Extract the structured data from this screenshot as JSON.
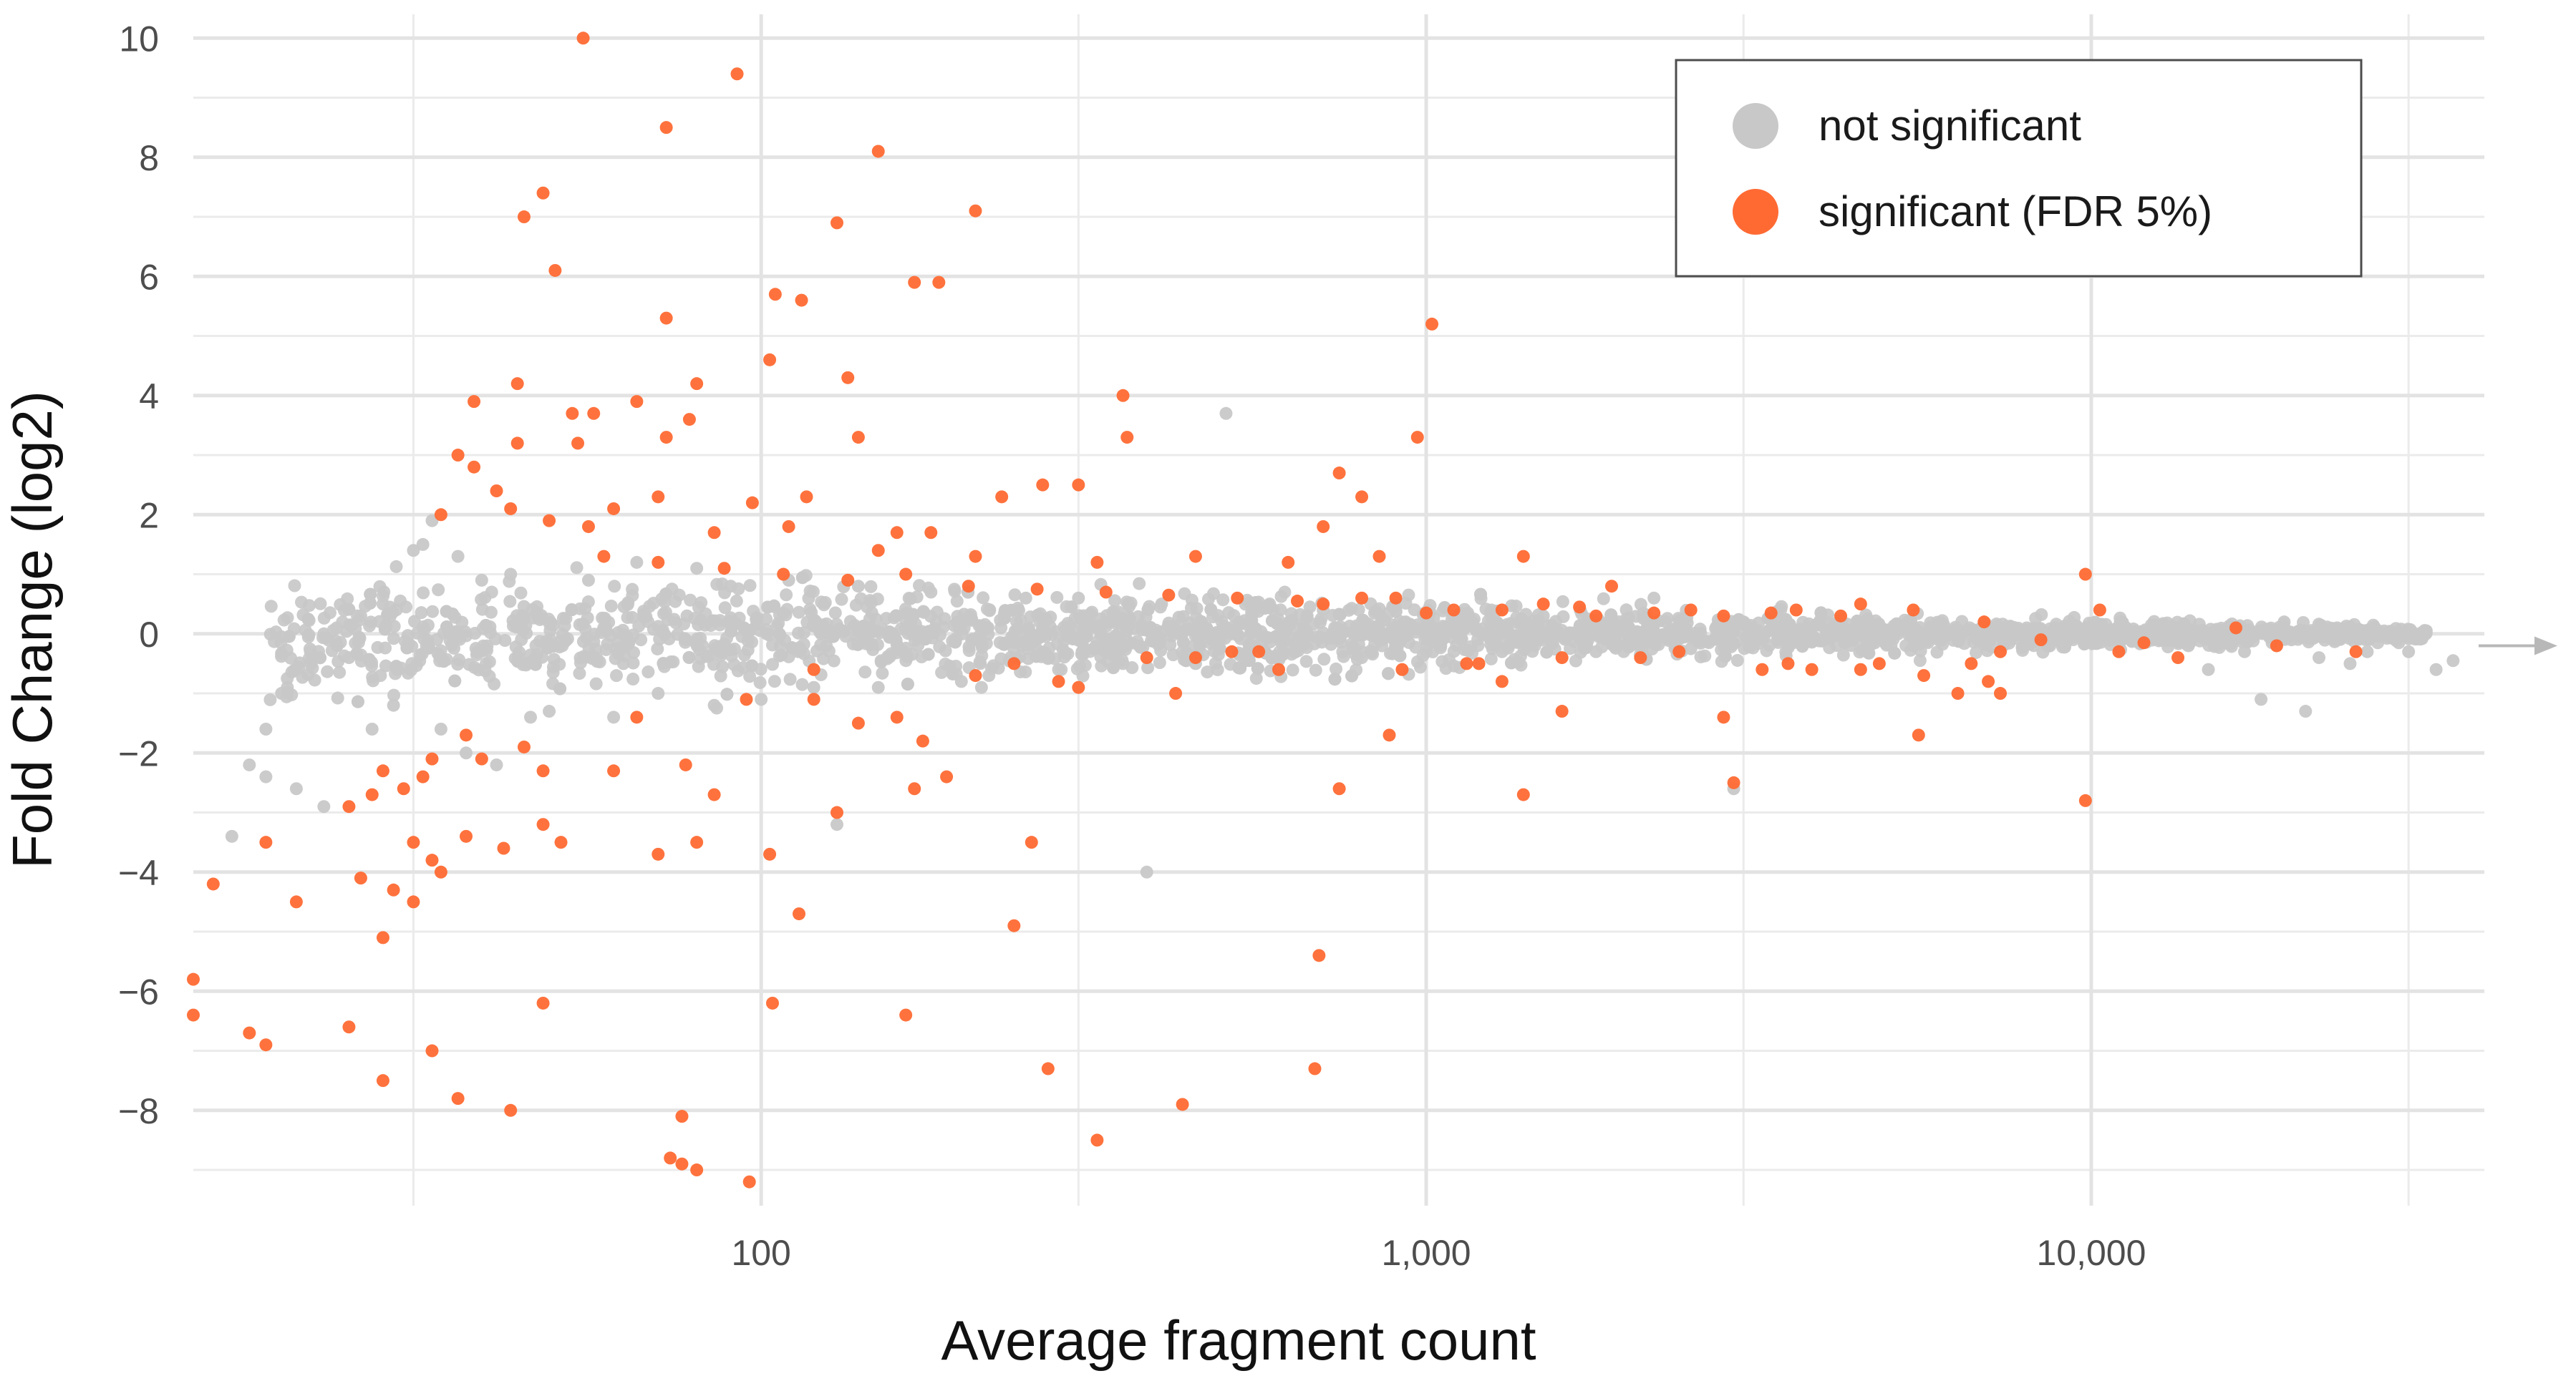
{
  "chart_data": {
    "type": "scatter",
    "title": "",
    "xlabel": "Average fragment count",
    "ylabel": "Fold Change (log2)",
    "x_scale": "log10",
    "xlim": [
      14,
      39000
    ],
    "ylim": [
      -9.6,
      10.4
    ],
    "x_ticks": [
      100,
      1000,
      10000
    ],
    "x_tick_labels": [
      "100",
      "1,000",
      "10,000"
    ],
    "y_ticks": [
      -8,
      -6,
      -4,
      -2,
      0,
      2,
      4,
      6,
      8,
      10
    ],
    "y_tick_labels": [
      "−8",
      "−6",
      "−4",
      "−2",
      "0",
      "2",
      "4",
      "6",
      "8",
      "10"
    ],
    "grid": true,
    "legend_position": "top-right",
    "colors": {
      "not_significant": "#c8c8c8",
      "significant": "#ff6a33"
    },
    "series": [
      {
        "name": "not significant",
        "color": "#c8c8c8",
        "points": [
          [
            17,
            -2.2
          ],
          [
            18,
            -1.6
          ],
          [
            19,
            -1.0
          ],
          [
            20,
            -0.6
          ],
          [
            21,
            -0.3
          ],
          [
            22,
            0.0
          ],
          [
            23,
            0.1
          ],
          [
            24,
            -0.4
          ],
          [
            25,
            0.3
          ],
          [
            16,
            -3.4
          ],
          [
            20,
            -2.6
          ],
          [
            22,
            -2.9
          ],
          [
            18,
            -2.4
          ],
          [
            26,
            -1.6
          ],
          [
            27,
            0.5
          ],
          [
            28,
            -1.2
          ],
          [
            30,
            1.4
          ],
          [
            31,
            1.5
          ],
          [
            32,
            1.9
          ],
          [
            33,
            -1.6
          ],
          [
            35,
            1.3
          ],
          [
            36,
            -2.0
          ],
          [
            38,
            0.9
          ],
          [
            40,
            -2.2
          ],
          [
            42,
            1.0
          ],
          [
            45,
            -1.4
          ],
          [
            48,
            -1.3
          ],
          [
            55,
            0.9
          ],
          [
            60,
            -1.4
          ],
          [
            65,
            1.2
          ],
          [
            70,
            -1.0
          ],
          [
            80,
            1.1
          ],
          [
            85,
            -1.2
          ],
          [
            90,
            0.8
          ],
          [
            100,
            -1.1
          ],
          [
            110,
            0.9
          ],
          [
            120,
            -0.9
          ],
          [
            130,
            -3.2
          ],
          [
            140,
            0.8
          ],
          [
            150,
            -0.9
          ],
          [
            180,
            0.7
          ],
          [
            200,
            -0.8
          ],
          [
            220,
            -0.7
          ],
          [
            250,
            0.6
          ],
          [
            280,
            -0.6
          ],
          [
            300,
            0.6
          ],
          [
            350,
            -0.5
          ],
          [
            380,
            -4.0
          ],
          [
            400,
            0.5
          ],
          [
            450,
            -0.5
          ],
          [
            500,
            3.7
          ],
          [
            550,
            0.5
          ],
          [
            600,
            -0.4
          ],
          [
            700,
            0.4
          ],
          [
            800,
            -0.4
          ],
          [
            900,
            0.4
          ],
          [
            1000,
            -0.3
          ],
          [
            1100,
            0.3
          ],
          [
            1300,
            -0.3
          ],
          [
            1500,
            0.3
          ],
          [
            1800,
            -0.3
          ],
          [
            2000,
            0.25
          ],
          [
            2200,
            0.6
          ],
          [
            2500,
            -0.25
          ],
          [
            2900,
            -2.6
          ],
          [
            3000,
            0.2
          ],
          [
            3500,
            -0.2
          ],
          [
            4000,
            0.2
          ],
          [
            5000,
            -0.2
          ],
          [
            6000,
            0.15
          ],
          [
            7000,
            -0.15
          ],
          [
            8000,
            0.1
          ],
          [
            9000,
            -0.15
          ],
          [
            10000,
            0.1
          ],
          [
            11000,
            -0.1
          ],
          [
            13000,
            0.05
          ],
          [
            14000,
            -0.2
          ],
          [
            15000,
            -0.6
          ],
          [
            16000,
            0.0
          ],
          [
            17000,
            -0.3
          ],
          [
            18000,
            -1.1
          ],
          [
            19000,
            -0.2
          ],
          [
            20000,
            -0.1
          ],
          [
            21000,
            -1.3
          ],
          [
            22000,
            -0.4
          ],
          [
            24000,
            0.0
          ],
          [
            26000,
            -0.3
          ],
          [
            28000,
            0.0
          ],
          [
            30000,
            -0.3
          ],
          [
            33000,
            -0.6
          ],
          [
            35000,
            -0.45
          ],
          [
            24500,
            -0.5
          ],
          [
            19500,
            0.2
          ],
          [
            29000,
            -0.15
          ]
        ]
      },
      {
        "name": "significant (FDR 5%)",
        "color": "#ff6a33",
        "points": [
          [
            54,
            10.0
          ],
          [
            92,
            9.4
          ],
          [
            72,
            8.5
          ],
          [
            150,
            8.1
          ],
          [
            47,
            7.4
          ],
          [
            44,
            7.0
          ],
          [
            210,
            7.1
          ],
          [
            130,
            6.9
          ],
          [
            49,
            6.1
          ],
          [
            170,
            5.9
          ],
          [
            185,
            5.9
          ],
          [
            105,
            5.7
          ],
          [
            115,
            5.6
          ],
          [
            72,
            5.3
          ],
          [
            1020,
            5.2
          ],
          [
            103,
            4.6
          ],
          [
            43,
            4.2
          ],
          [
            80,
            4.2
          ],
          [
            135,
            4.3
          ],
          [
            37,
            3.9
          ],
          [
            65,
            3.9
          ],
          [
            350,
            4.0
          ],
          [
            52,
            3.7
          ],
          [
            56,
            3.7
          ],
          [
            78,
            3.6
          ],
          [
            72,
            3.3
          ],
          [
            43,
            3.2
          ],
          [
            53,
            3.2
          ],
          [
            140,
            3.3
          ],
          [
            355,
            3.3
          ],
          [
            970,
            3.3
          ],
          [
            35,
            3.0
          ],
          [
            37,
            2.8
          ],
          [
            740,
            2.7
          ],
          [
            265,
            2.5
          ],
          [
            300,
            2.5
          ],
          [
            40,
            2.4
          ],
          [
            70,
            2.3
          ],
          [
            117,
            2.3
          ],
          [
            60,
            2.1
          ],
          [
            42,
            2.1
          ],
          [
            33,
            2.0
          ],
          [
            48,
            1.9
          ],
          [
            55,
            1.8
          ],
          [
            85,
            1.7
          ],
          [
            97,
            2.2
          ],
          [
            110,
            1.8
          ],
          [
            160,
            1.7
          ],
          [
            180,
            1.7
          ],
          [
            230,
            2.3
          ],
          [
            700,
            1.8
          ],
          [
            800,
            2.3
          ],
          [
            150,
            1.4
          ],
          [
            210,
            1.3
          ],
          [
            320,
            1.2
          ],
          [
            450,
            1.3
          ],
          [
            620,
            1.2
          ],
          [
            850,
            1.3
          ],
          [
            1400,
            1.3
          ],
          [
            1900,
            0.8
          ],
          [
            9800,
            1.0
          ],
          [
            36,
            -1.7
          ],
          [
            44,
            -1.9
          ],
          [
            32,
            -2.1
          ],
          [
            38,
            -2.1
          ],
          [
            27,
            -2.3
          ],
          [
            47,
            -2.3
          ],
          [
            60,
            -2.3
          ],
          [
            77,
            -2.2
          ],
          [
            29,
            -2.6
          ],
          [
            31,
            -2.4
          ],
          [
            26,
            -2.7
          ],
          [
            85,
            -2.7
          ],
          [
            24,
            -2.9
          ],
          [
            30,
            -3.5
          ],
          [
            18,
            -3.5
          ],
          [
            15,
            -4.2
          ],
          [
            20,
            -4.5
          ],
          [
            25,
            -4.1
          ],
          [
            28,
            -4.3
          ],
          [
            30,
            -4.5
          ],
          [
            33,
            -4.0
          ],
          [
            32,
            -3.8
          ],
          [
            36,
            -3.4
          ],
          [
            41,
            -3.6
          ],
          [
            47,
            -3.2
          ],
          [
            50,
            -3.5
          ],
          [
            70,
            -3.7
          ],
          [
            80,
            -3.5
          ],
          [
            103,
            -3.7
          ],
          [
            130,
            -3.0
          ],
          [
            170,
            -2.6
          ],
          [
            190,
            -2.4
          ],
          [
            255,
            -3.5
          ],
          [
            240,
            -4.9
          ],
          [
            114,
            -4.7
          ],
          [
            27,
            -5.1
          ],
          [
            14,
            -5.8
          ],
          [
            14,
            -6.4
          ],
          [
            17,
            -6.7
          ],
          [
            18,
            -6.9
          ],
          [
            24,
            -6.6
          ],
          [
            47,
            -6.2
          ],
          [
            104,
            -6.2
          ],
          [
            165,
            -6.4
          ],
          [
            32,
            -7.0
          ],
          [
            27,
            -7.5
          ],
          [
            35,
            -7.8
          ],
          [
            42,
            -8.0
          ],
          [
            76,
            -8.1
          ],
          [
            270,
            -7.3
          ],
          [
            430,
            -7.9
          ],
          [
            680,
            -7.3
          ],
          [
            320,
            -8.5
          ],
          [
            73,
            -8.8
          ],
          [
            76,
            -8.9
          ],
          [
            80,
            -9.0
          ],
          [
            96,
            -9.2
          ],
          [
            690,
            -5.4
          ],
          [
            740,
            -2.6
          ],
          [
            880,
            -1.7
          ],
          [
            1400,
            -2.7
          ],
          [
            1600,
            -1.3
          ],
          [
            2800,
            -1.4
          ],
          [
            2900,
            -2.5
          ],
          [
            5500,
            -1.7
          ],
          [
            9800,
            -2.8
          ],
          [
            1300,
            -0.8
          ],
          [
            3200,
            -0.6
          ],
          [
            7000,
            -0.8
          ],
          [
            7300,
            -1.0
          ],
          [
            6300,
            -1.0
          ],
          [
            4800,
            -0.5
          ],
          [
            3800,
            -0.6
          ],
          [
            2100,
            -0.4
          ],
          [
            1200,
            -0.5
          ],
          [
            600,
            -0.6
          ],
          [
            420,
            -1.0
          ],
          [
            280,
            -0.8
          ],
          [
            210,
            -0.7
          ],
          [
            160,
            -1.4
          ],
          [
            120,
            -1.1
          ],
          [
            140,
            -1.5
          ],
          [
            175,
            -1.8
          ],
          [
            95,
            -1.1
          ],
          [
            65,
            -1.4
          ],
          [
            300,
            -0.9
          ],
          [
            450,
            -0.4
          ],
          [
            560,
            -0.3
          ],
          [
            700,
            0.5
          ],
          [
            900,
            0.6
          ],
          [
            1100,
            0.4
          ],
          [
            1500,
            0.5
          ],
          [
            1800,
            0.3
          ],
          [
            2500,
            0.4
          ],
          [
            3300,
            0.35
          ],
          [
            4200,
            0.3
          ],
          [
            5400,
            0.4
          ],
          [
            6900,
            0.2
          ],
          [
            4500,
            0.5
          ],
          [
            3600,
            0.4
          ],
          [
            2800,
            0.3
          ],
          [
            2200,
            0.35
          ],
          [
            1700,
            0.45
          ],
          [
            1300,
            0.4
          ],
          [
            1000,
            0.35
          ],
          [
            800,
            0.6
          ],
          [
            640,
            0.55
          ],
          [
            520,
            0.6
          ],
          [
            410,
            0.65
          ],
          [
            330,
            0.7
          ],
          [
            260,
            0.75
          ],
          [
            205,
            0.8
          ],
          [
            165,
            1.0
          ],
          [
            135,
            0.9
          ],
          [
            108,
            1.0
          ],
          [
            88,
            1.1
          ],
          [
            70,
            1.2
          ],
          [
            58,
            1.3
          ],
          [
            120,
            -0.6
          ],
          [
            240,
            -0.5
          ],
          [
            380,
            -0.4
          ],
          [
            510,
            -0.3
          ],
          [
            920,
            -0.6
          ],
          [
            1150,
            -0.5
          ],
          [
            1600,
            -0.4
          ],
          [
            2400,
            -0.3
          ],
          [
            3500,
            -0.5
          ],
          [
            4500,
            -0.6
          ],
          [
            5600,
            -0.7
          ],
          [
            6600,
            -0.5
          ],
          [
            7300,
            -0.3
          ],
          [
            8400,
            -0.1
          ],
          [
            10300,
            0.4
          ],
          [
            11000,
            -0.3
          ],
          [
            12000,
            -0.15
          ],
          [
            25000,
            -0.3
          ],
          [
            19000,
            -0.2
          ],
          [
            13500,
            -0.4
          ],
          [
            16500,
            0.1
          ]
        ]
      }
    ]
  },
  "legend": {
    "items": [
      {
        "label": "not significant",
        "color": "#c8c8c8"
      },
      {
        "label": "significant (FDR 5%)",
        "color": "#ff6a33"
      }
    ]
  }
}
